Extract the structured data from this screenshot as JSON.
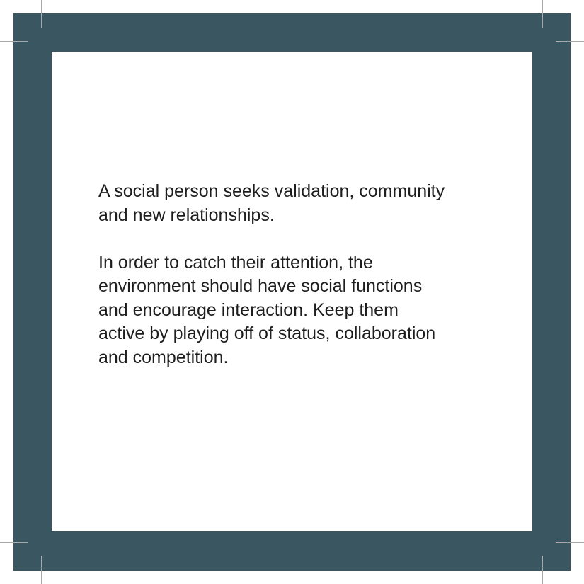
{
  "card": {
    "frame_color": "#3a5761",
    "panel_color": "#ffffff",
    "text_color": "#1e1e1e",
    "paragraphs": [
      "A social person seeks validation, community\nand new relationships.",
      "In order to catch their attention, the\nenvironment should have social functions\nand encourage interaction. Keep them\nactive by playing off of status, collaboration\nand competition."
    ]
  }
}
